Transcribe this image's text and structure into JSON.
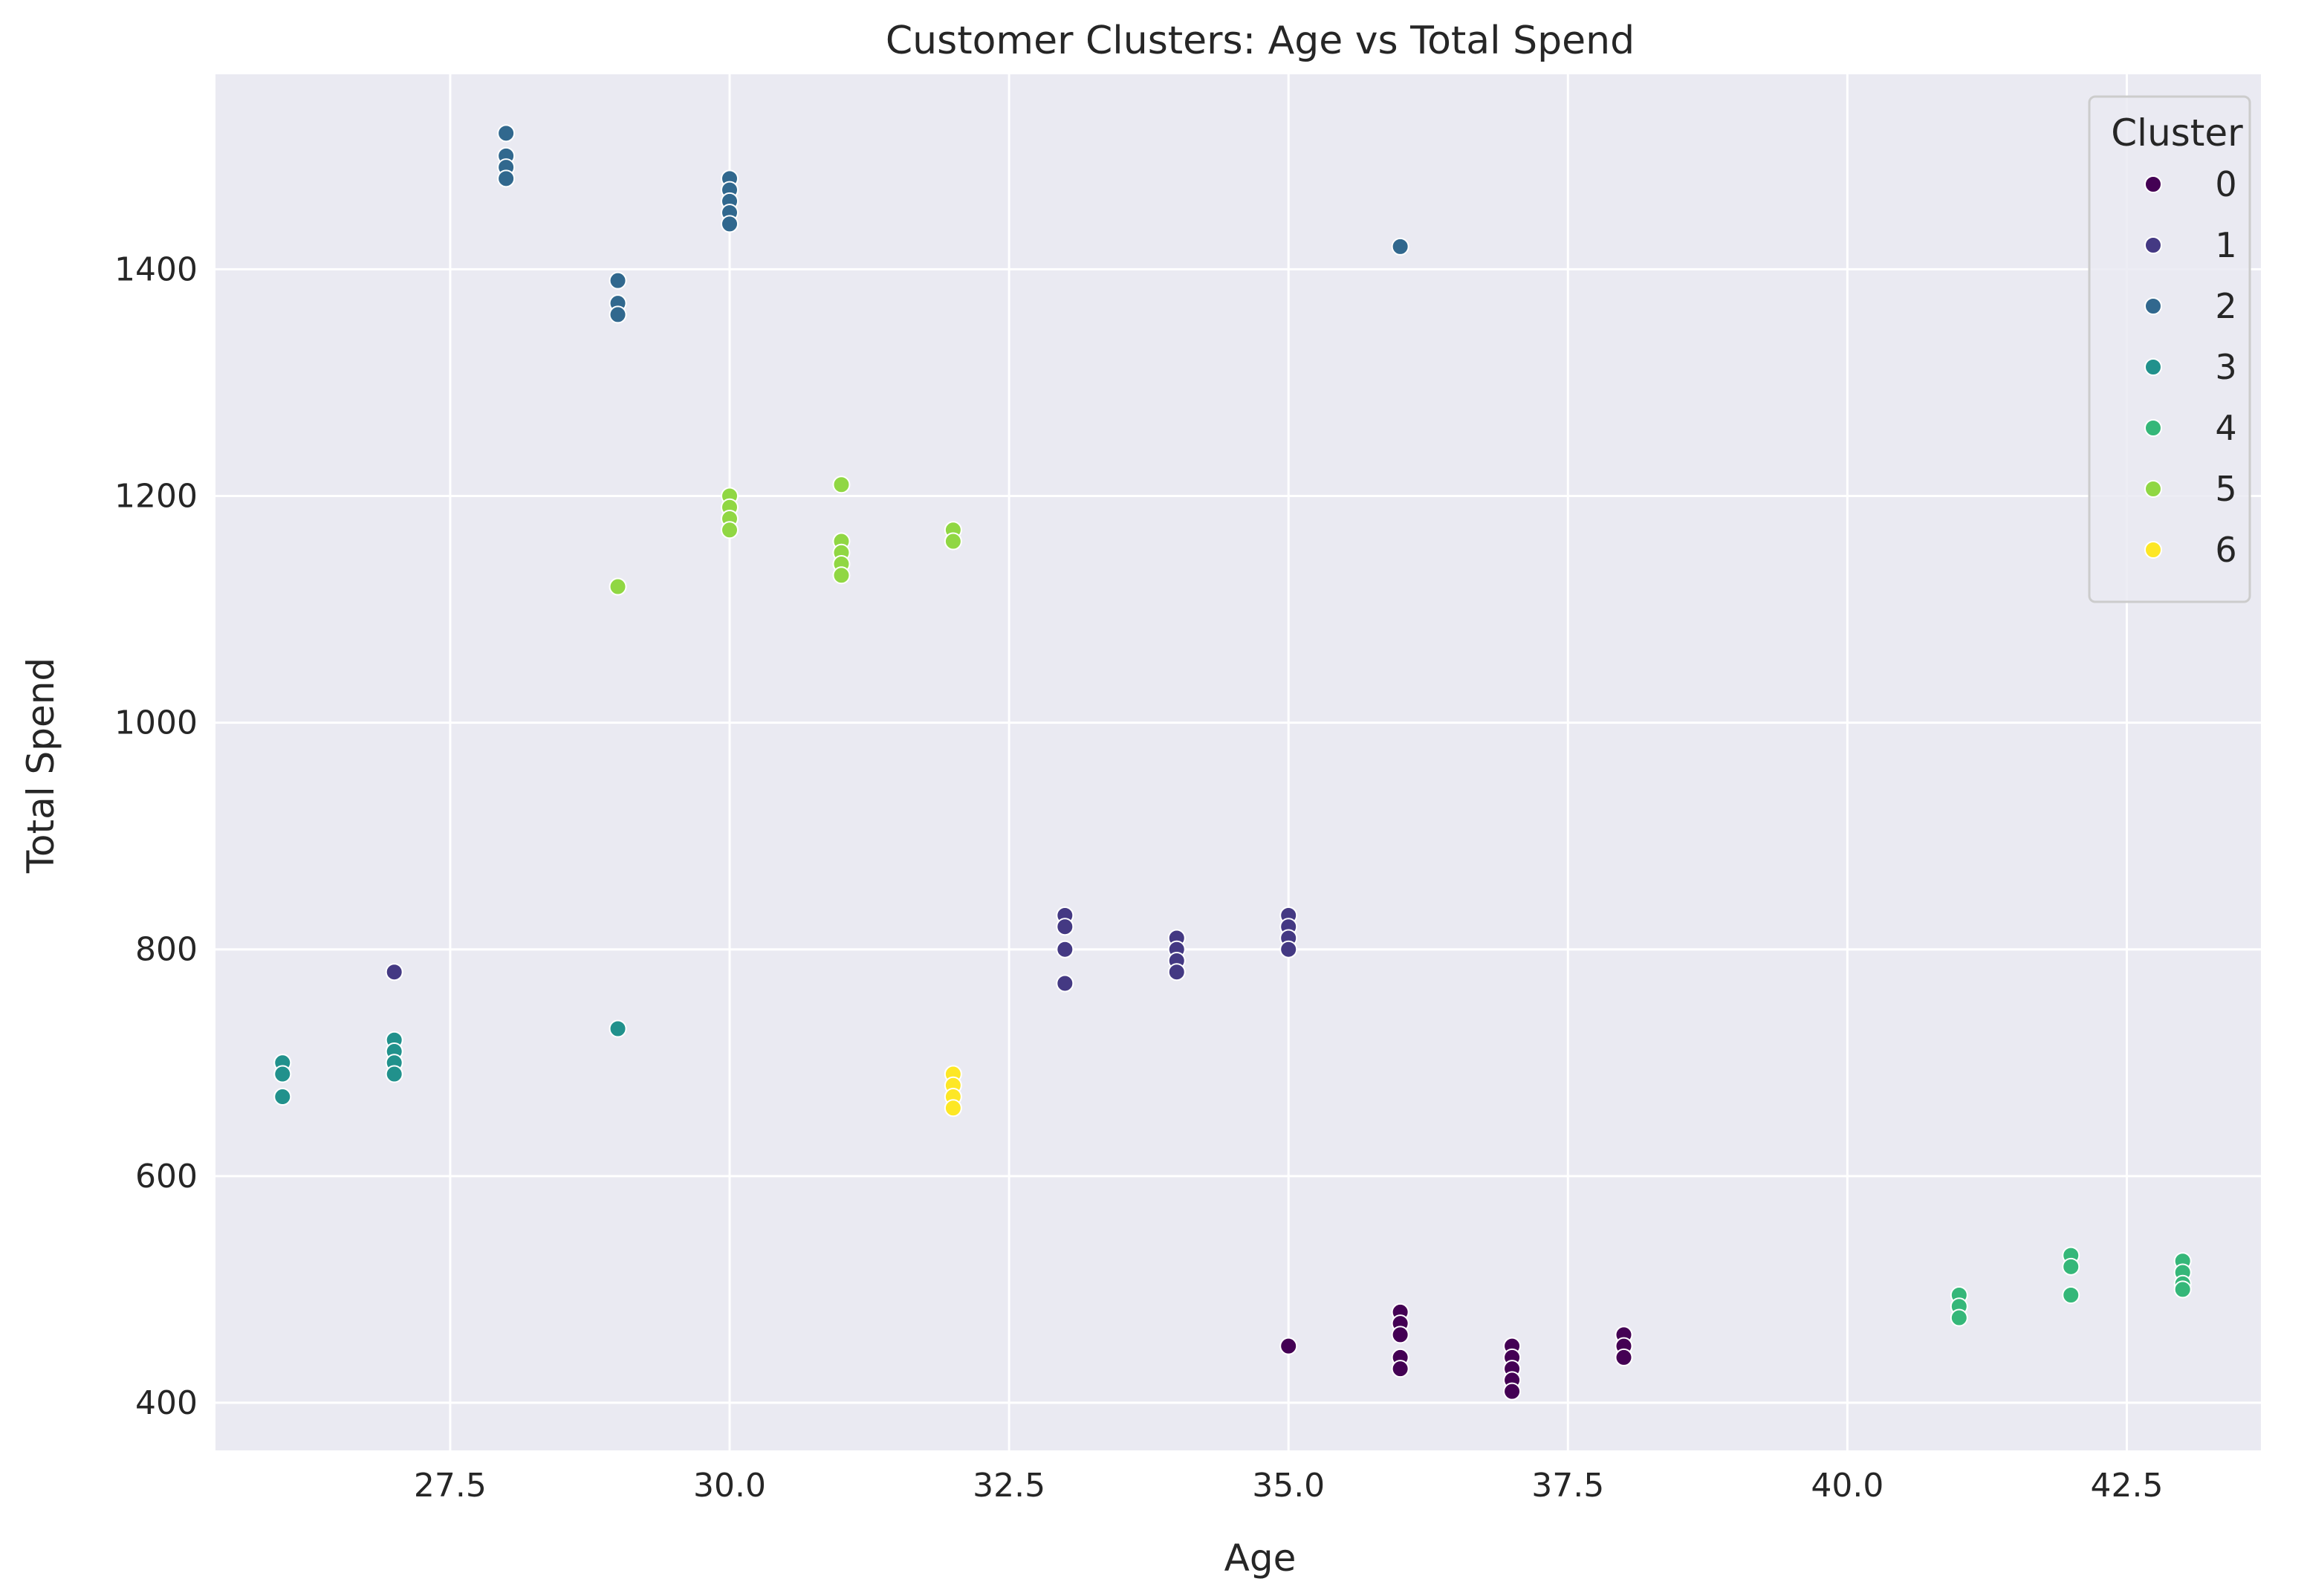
{
  "chart_data": {
    "type": "scatter",
    "title": "Customer Clusters: Age vs Total Spend",
    "xlabel": "Age",
    "ylabel": "Total Spend",
    "xlim": [
      25.4,
      43.7
    ],
    "ylim": [
      358,
      1572
    ],
    "xticks": [
      "27.5",
      "30.0",
      "32.5",
      "35.0",
      "37.5",
      "40.0",
      "42.5"
    ],
    "yticks": [
      "400",
      "600",
      "800",
      "1000",
      "1200",
      "1400"
    ],
    "grid": true,
    "legend": {
      "title": "Cluster",
      "placement": "top-right"
    },
    "series": [
      {
        "name": "0",
        "color": "#440154",
        "points": [
          [
            35,
            450
          ],
          [
            36,
            480
          ],
          [
            36,
            470
          ],
          [
            36,
            460
          ],
          [
            36,
            440
          ],
          [
            36,
            430
          ],
          [
            37,
            450
          ],
          [
            37,
            440
          ],
          [
            37,
            430
          ],
          [
            37,
            420
          ],
          [
            37,
            410
          ],
          [
            38,
            460
          ],
          [
            38,
            450
          ],
          [
            38,
            440
          ]
        ]
      },
      {
        "name": "1",
        "color": "#443983",
        "points": [
          [
            27,
            780
          ],
          [
            33,
            830
          ],
          [
            33,
            820
          ],
          [
            33,
            800
          ],
          [
            33,
            770
          ],
          [
            34,
            810
          ],
          [
            34,
            800
          ],
          [
            34,
            790
          ],
          [
            34,
            780
          ],
          [
            35,
            830
          ],
          [
            35,
            820
          ],
          [
            35,
            810
          ],
          [
            35,
            800
          ]
        ]
      },
      {
        "name": "2",
        "color": "#31688e",
        "points": [
          [
            28,
            1520
          ],
          [
            28,
            1500
          ],
          [
            28,
            1490
          ],
          [
            28,
            1480
          ],
          [
            29,
            1390
          ],
          [
            29,
            1370
          ],
          [
            29,
            1360
          ],
          [
            30,
            1480
          ],
          [
            30,
            1470
          ],
          [
            30,
            1460
          ],
          [
            30,
            1450
          ],
          [
            30,
            1440
          ],
          [
            36,
            1420
          ]
        ]
      },
      {
        "name": "3",
        "color": "#21918c",
        "points": [
          [
            26,
            700
          ],
          [
            26,
            690
          ],
          [
            26,
            670
          ],
          [
            27,
            720
          ],
          [
            27,
            710
          ],
          [
            27,
            700
          ],
          [
            27,
            690
          ],
          [
            29,
            730
          ]
        ]
      },
      {
        "name": "4",
        "color": "#35b779",
        "points": [
          [
            41,
            495
          ],
          [
            41,
            485
          ],
          [
            41,
            475
          ],
          [
            42,
            530
          ],
          [
            42,
            520
          ],
          [
            42,
            495
          ],
          [
            43,
            525
          ],
          [
            43,
            515
          ],
          [
            43,
            505
          ],
          [
            43,
            500
          ]
        ]
      },
      {
        "name": "5",
        "color": "#90d743",
        "points": [
          [
            29,
            1120
          ],
          [
            30,
            1200
          ],
          [
            30,
            1190
          ],
          [
            30,
            1180
          ],
          [
            30,
            1170
          ],
          [
            31,
            1210
          ],
          [
            31,
            1160
          ],
          [
            31,
            1150
          ],
          [
            31,
            1140
          ],
          [
            31,
            1130
          ],
          [
            32,
            1170
          ],
          [
            32,
            1160
          ]
        ]
      },
      {
        "name": "6",
        "color": "#fde725",
        "points": [
          [
            32,
            690
          ],
          [
            32,
            680
          ],
          [
            32,
            670
          ],
          [
            32,
            660
          ]
        ]
      }
    ]
  }
}
